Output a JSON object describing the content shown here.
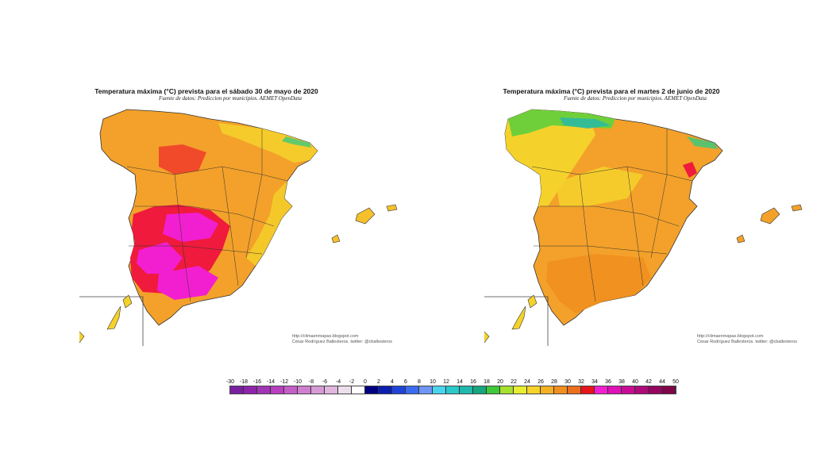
{
  "maps": [
    {
      "title": "Temperatura máxima (°C) prevista para el sábado 30 de mayo de 2020",
      "subtitle": "Fuente de datos: Prediccion por municipios. AEMET OpenData",
      "credit_url": "http://climaenmapas.blogspot.com",
      "credit_author": "César Rodríguez Ballesteros. twitter: @cballesteros"
    },
    {
      "title": "Temperatura máxima (°C) prevista para el martes 2 de junio de 2020",
      "subtitle": "Fuente de datos: Prediccion por municipios. AEMET OpenData",
      "credit_url": "http://climaenmapas.blogspot.com",
      "credit_author": "César Rodríguez Ballesteros. twitter: @cballesteros"
    }
  ],
  "legend": {
    "labels": [
      "-30",
      "-18",
      "-16",
      "-14",
      "-12",
      "-10",
      "-8",
      "-6",
      "-4",
      "-2",
      "0",
      "2",
      "4",
      "6",
      "8",
      "10",
      "12",
      "14",
      "16",
      "18",
      "20",
      "22",
      "24",
      "26",
      "28",
      "30",
      "32",
      "34",
      "36",
      "38",
      "40",
      "42",
      "44",
      "50"
    ],
    "colors": [
      "#7b1fa2",
      "#8e24aa",
      "#a234b6",
      "#b83fc0",
      "#c55fc8",
      "#d07fd0",
      "#d79ad7",
      "#e0b6df",
      "#ece0ec",
      "#ffffff",
      "#000080",
      "#0b1fb0",
      "#1f45d8",
      "#3a6cf0",
      "#6f96f4",
      "#49d4ee",
      "#2bc9c9",
      "#1fb9ae",
      "#17a57e",
      "#3ec83a",
      "#a6e030",
      "#e6ed32",
      "#f7d32a",
      "#f6b024",
      "#f08f1f",
      "#ec6f1b",
      "#e8141b",
      "#f21fd0",
      "#e011b6",
      "#c80c96",
      "#b0097a",
      "#960660",
      "#80054a"
    ]
  },
  "colors": {
    "hot_extreme": "#f21fd0",
    "hot_red": "#f0143a",
    "orange": "#f09a22",
    "yellow": "#f5d22b",
    "green": "#6fcf3a",
    "cyan": "#2ab9a8"
  }
}
